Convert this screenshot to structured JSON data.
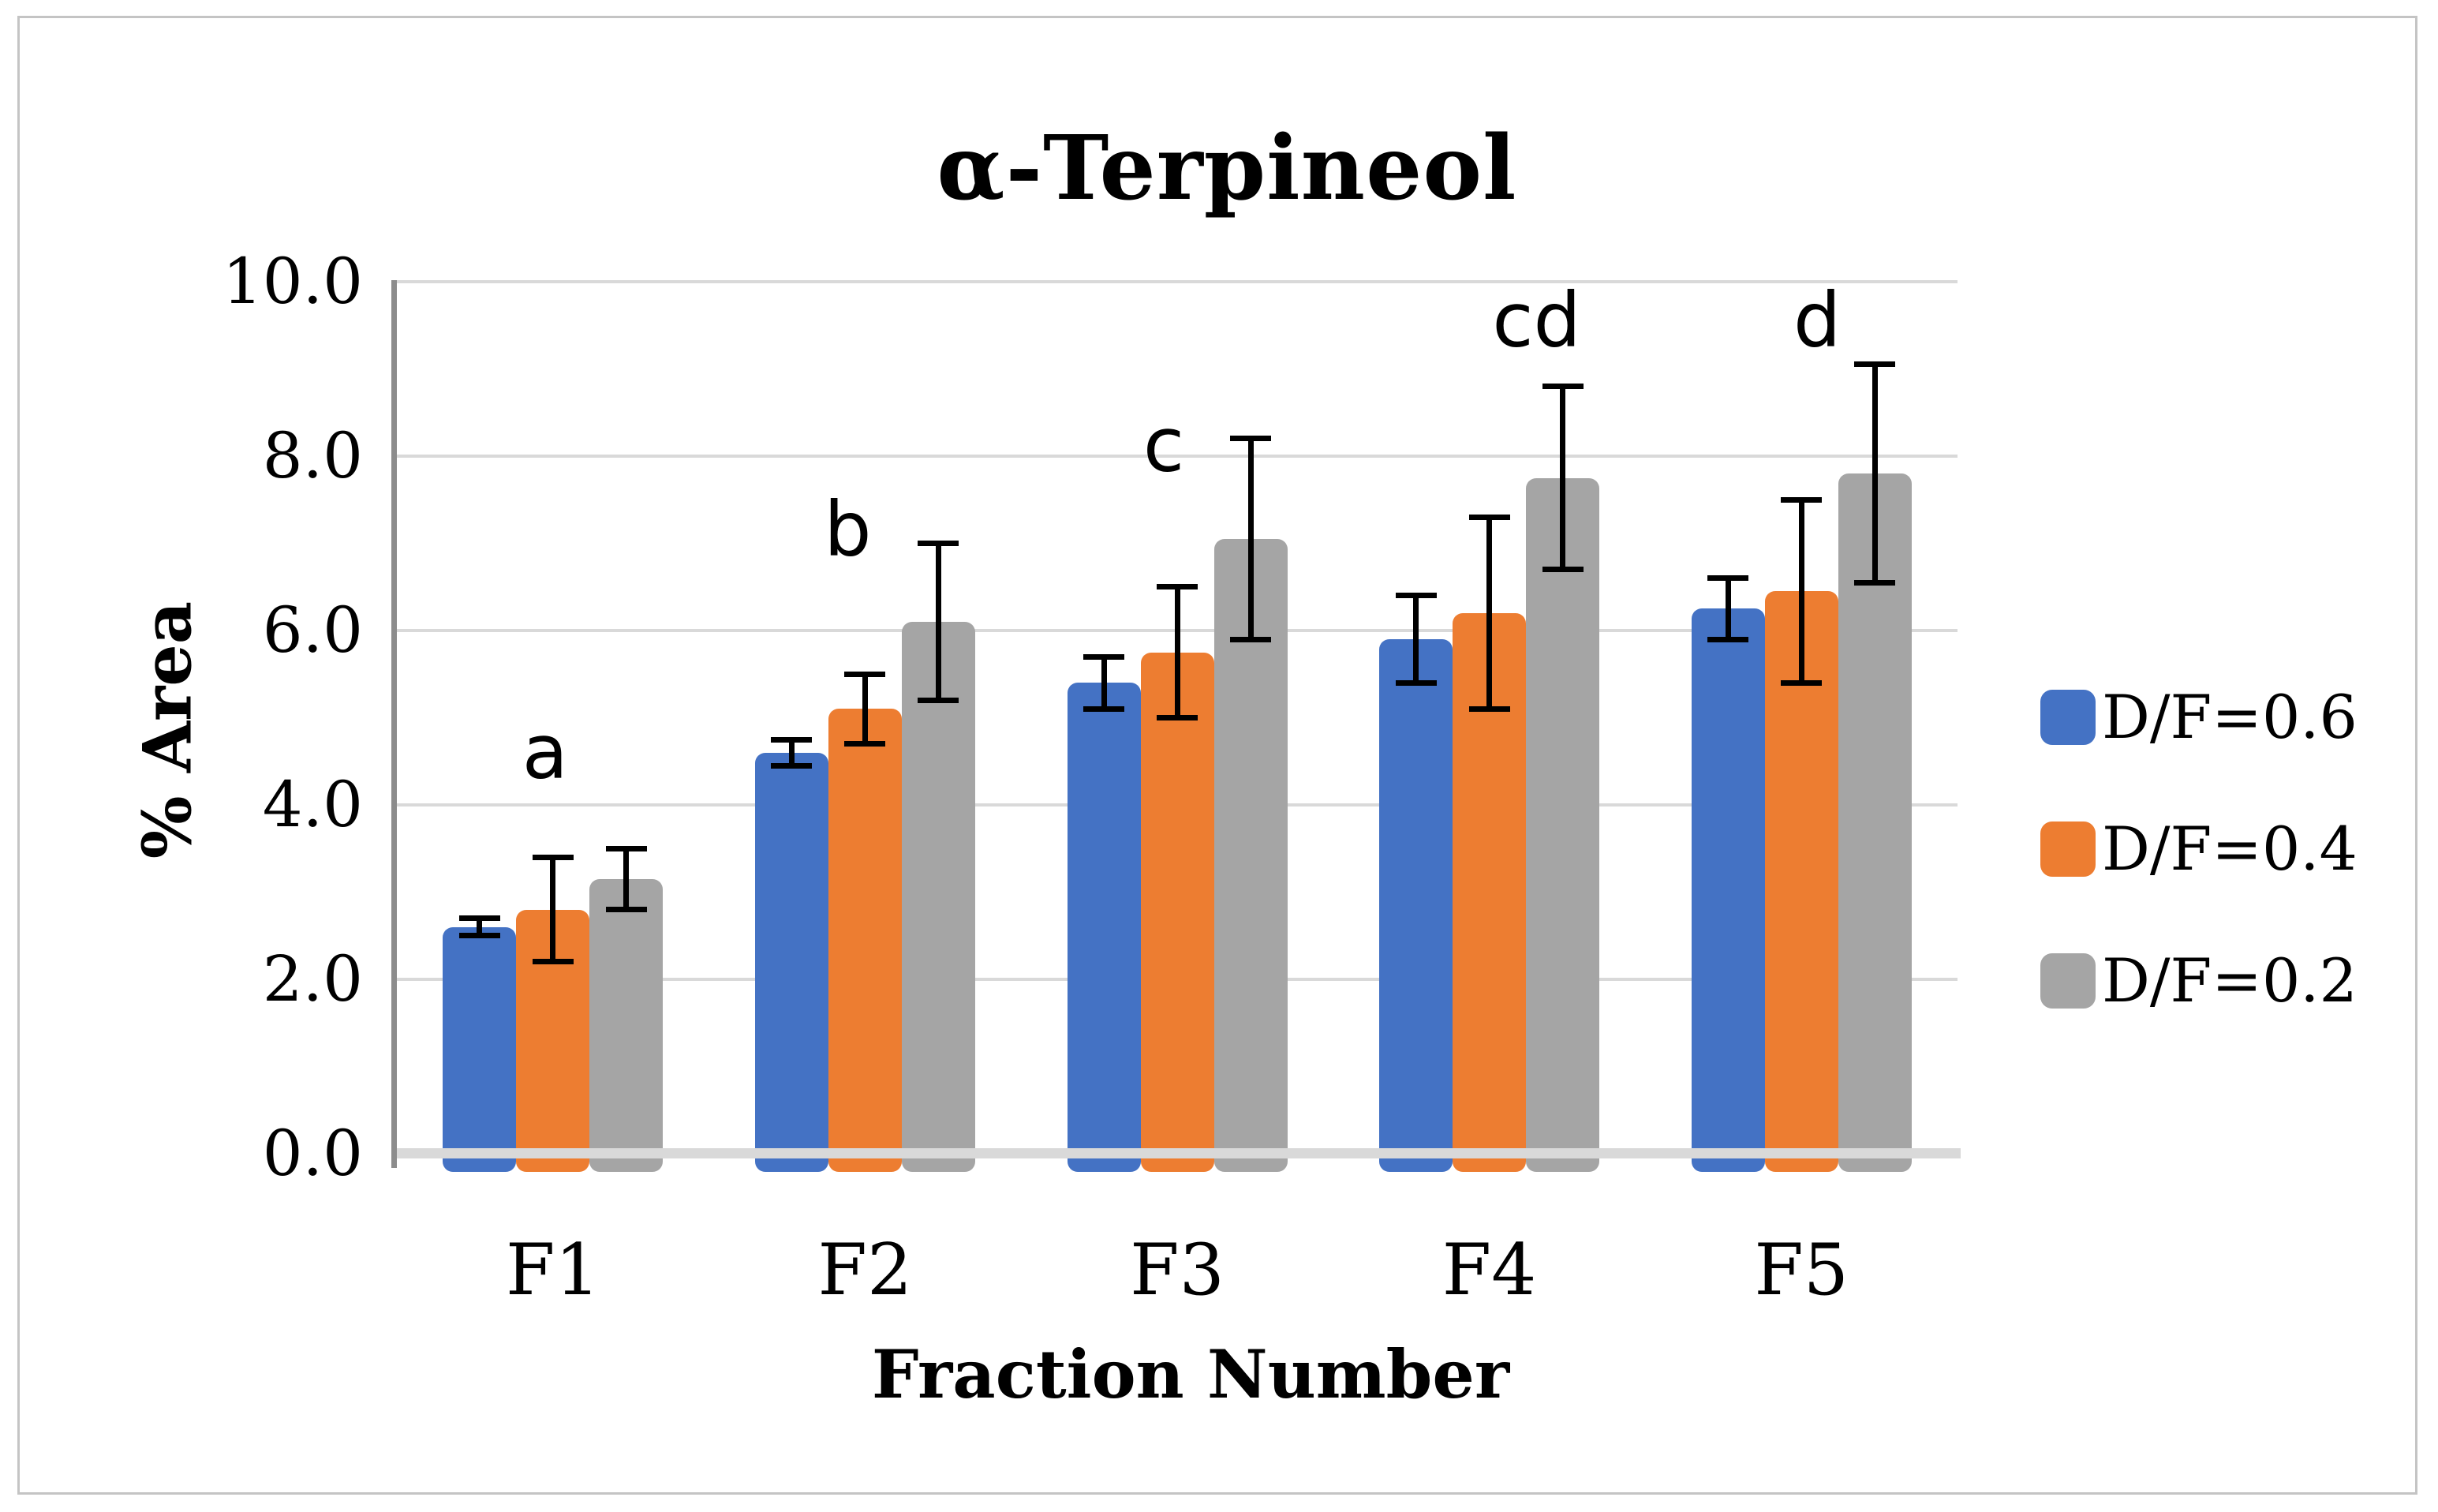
{
  "chart_data": {
    "type": "bar",
    "title": "α-Terpineol",
    "xlabel": "Fraction Number",
    "ylabel": "% Area",
    "ylim": [
      0,
      10
    ],
    "ytick_step": 2,
    "grid": true,
    "legend_position": "right",
    "gridline_color": "#D9D9D9",
    "axis_line_color": "#8C8C8C",
    "baseline_color": "#D9D9D9",
    "error_bar_color": "#000000",
    "y_ticks": [
      {
        "label": "10.0",
        "value": 10
      },
      {
        "label": "8.0",
        "value": 8
      },
      {
        "label": "6.0",
        "value": 6
      },
      {
        "label": "4.0",
        "value": 4
      },
      {
        "label": "2.0",
        "value": 2
      },
      {
        "label": "0.0",
        "value": 0
      }
    ],
    "categories": [
      "F1",
      "F2",
      "F3",
      "F4",
      "F5"
    ],
    "series": [
      {
        "name": "D/F=0.6",
        "color": "#4472C4",
        "values": [
          2.6,
          4.6,
          5.4,
          5.9,
          6.25
        ],
        "errors": [
          0.1,
          0.15,
          0.3,
          0.5,
          0.35
        ]
      },
      {
        "name": "D/F=0.4",
        "color": "#ED7D31",
        "values": [
          2.8,
          5.1,
          5.75,
          6.2,
          6.45
        ],
        "errors": [
          0.6,
          0.4,
          0.75,
          1.1,
          1.05
        ]
      },
      {
        "name": "D/F=0.2",
        "color": "#A5A5A5",
        "values": [
          3.15,
          6.1,
          7.05,
          7.75,
          7.8
        ],
        "errors": [
          0.35,
          0.9,
          1.15,
          1.05,
          1.25
        ]
      }
    ],
    "annotations": [
      {
        "label": "a",
        "category": "F1",
        "y_value": 4.6,
        "x_offset": -10
      },
      {
        "label": "b",
        "category": "F2",
        "y_value": 7.15,
        "x_offset": -22
      },
      {
        "label": "c",
        "category": "F3",
        "y_value": 8.12,
        "x_offset": -17
      },
      {
        "label": "cd",
        "category": "F4",
        "y_value": 9.55,
        "x_offset": 60
      },
      {
        "label": "d",
        "category": "F5",
        "y_value": 9.55,
        "x_offset": 20
      }
    ]
  }
}
